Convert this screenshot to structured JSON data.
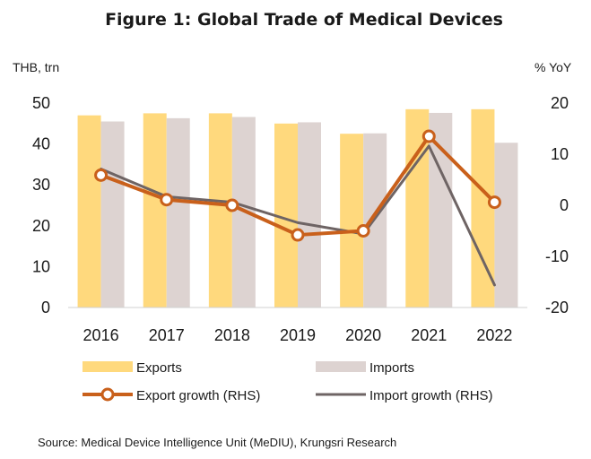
{
  "chart_data": {
    "type": "bar",
    "title": "Figure 1: Global Trade of Medical Devices",
    "left_unit": "THB, trn",
    "right_unit": "% YoY",
    "categories": [
      "2016",
      "2017",
      "2018",
      "2019",
      "2020",
      "2021",
      "2022"
    ],
    "y_left": {
      "range": [
        0,
        50
      ],
      "ticks": [
        "0",
        "10",
        "20",
        "30",
        "40",
        "50"
      ]
    },
    "y_right": {
      "range": [
        -20,
        20
      ],
      "ticks": [
        "-20",
        "-10",
        "0",
        "10",
        "20"
      ]
    },
    "grid": false,
    "legend_position": "bottom",
    "series": [
      {
        "name": "Exports",
        "kind": "bar",
        "axis": "left",
        "color": "#FFD97D",
        "values": [
          47.0,
          47.5,
          47.5,
          45.0,
          42.5,
          48.5,
          48.5
        ]
      },
      {
        "name": "Imports",
        "kind": "bar",
        "axis": "left",
        "color": "#DDD3D1",
        "values": [
          45.5,
          46.3,
          46.6,
          45.3,
          42.6,
          47.6,
          40.3
        ]
      },
      {
        "name": "Export growth (RHS)",
        "kind": "line",
        "axis": "right",
        "color": "#C9601B",
        "markers": true,
        "values": [
          5.9,
          1.1,
          0.0,
          -5.8,
          -5.0,
          13.5,
          0.6
        ]
      },
      {
        "name": "Import growth (RHS)",
        "kind": "line",
        "axis": "right",
        "color": "#6E6464",
        "markers": false,
        "values": [
          7.1,
          1.7,
          0.6,
          -3.4,
          -5.6,
          11.6,
          -15.6
        ]
      }
    ]
  },
  "source": "Source: Medical Device Intelligence Unit (MeDIU), Krungsri Research"
}
